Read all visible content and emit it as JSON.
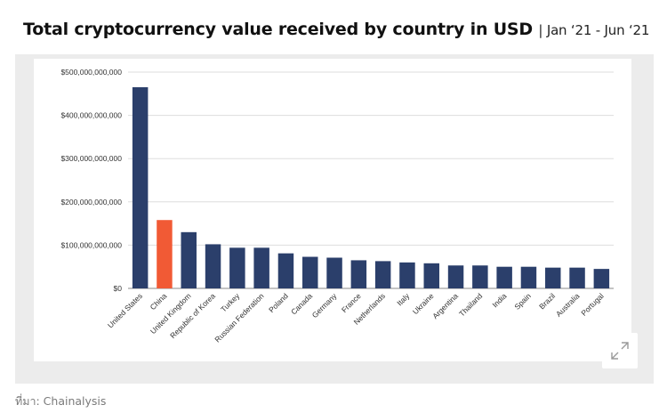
{
  "header": {
    "title": "Total cryptocurrency value received by country in USD",
    "subtitle": "| Jan ‘21 - Jun ‘21"
  },
  "source": "ที่มา: Chainalysis",
  "colors": {
    "bar": "#2b3f6b",
    "highlight": "#f15a35",
    "grid": "#dddddd",
    "axis": "#888888"
  },
  "chart_data": {
    "type": "bar",
    "categories": [
      "United States",
      "China",
      "United Kingdom",
      "Republic of Korea",
      "Turkey",
      "Russian Federation",
      "Poland",
      "Canada",
      "Germany",
      "France",
      "Netherlands",
      "Italy",
      "Ukraine",
      "Argentina",
      "Thailand",
      "India",
      "Spain",
      "Brazil",
      "Australia",
      "Portugal"
    ],
    "values": [
      465000000000,
      158000000000,
      130000000000,
      102000000000,
      94000000000,
      94000000000,
      81000000000,
      73000000000,
      71000000000,
      65000000000,
      63000000000,
      60000000000,
      58000000000,
      53000000000,
      53000000000,
      50000000000,
      50000000000,
      48000000000,
      48000000000,
      45000000000
    ],
    "highlight_category": "China",
    "yticks": [
      0,
      100000000000,
      200000000000,
      300000000000,
      400000000000,
      500000000000
    ],
    "ytick_labels": [
      "$0",
      "$100,000,000,000",
      "$200,000,000,000",
      "$300,000,000,000",
      "$400,000,000,000",
      "$500,000,000,000"
    ],
    "ylim": [
      0,
      500000000000
    ],
    "grid": true,
    "legend": "none",
    "xlabel": "",
    "ylabel": ""
  },
  "icons": {
    "expand": "expand-icon"
  }
}
